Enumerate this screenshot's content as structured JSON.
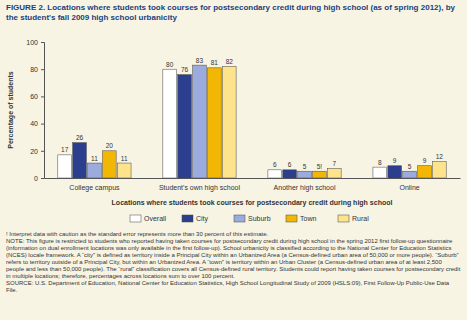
{
  "chart_data": {
    "type": "bar",
    "title": "FIGURE 2. Locations where students took courses for postsecondary credit during high school (as of spring 2012), by the student's fall 2009 high school urbanicity",
    "x_label": "Locations where students took courses for postsecondary credit during high school",
    "y_label": "Percentage of students",
    "categories": [
      "College campus",
      "Student's own high school",
      "Another high school",
      "Online"
    ],
    "series": [
      {
        "name": "Overall",
        "color": "#ffffff",
        "values": [
          17,
          80,
          6,
          8
        ]
      },
      {
        "name": "City",
        "color": "#2b3f8e",
        "values": [
          26,
          76,
          6,
          9
        ]
      },
      {
        "name": "Suburb",
        "color": "#9cabdd",
        "values": [
          11,
          83,
          5,
          5
        ]
      },
      {
        "name": "Town",
        "color": "#f2b705",
        "values": [
          20,
          81,
          5,
          9
        ],
        "value_labels": [
          "20",
          "81",
          "5!",
          "9"
        ]
      },
      {
        "name": "Rural",
        "color": "#fce38c",
        "values": [
          11,
          82,
          7,
          12
        ]
      }
    ],
    "ylim": [
      0,
      100
    ],
    "yticks": [
      0,
      20,
      40,
      60,
      80,
      100
    ],
    "grid": false,
    "legend": "bottom",
    "data_labels": true,
    "annotations": [
      "! Interpret data with caution as the standard error represents more than 30 percent of this estimate.",
      "NOTE: This figure is restricted to students who reported having taken courses for postsecondary credit during high school in the spring 2012 first follow-up questionnaire (information on dual enrollment locations was only available in the first follow-up). School urbanicity is classified according to the National Center for Education Statistics (NCES) locale framework. A “city” is defined as territory inside a Principal City within an Urbanized Area (a Census-defined urban area of 50,000 or more people). “Suburb” refers to territory outside of a Principal City, but within an Urbanized Area. A “town” is territory within an Urban Cluster (a Census-defined urban area of at least 2,500 people and less than 50,000 people). The “rural” classification covers all Census-defined rural territory. Students could report having taken courses for postsecondary credit in multiple locations; therefore, percentages across locations sum to over 100 percent.",
      "SOURCE: U.S. Department of Education, National Center for Education Statistics, High School Longitudinal Study of 2009 (HSLS:09), First Follow-Up Public-Use Data File."
    ]
  }
}
